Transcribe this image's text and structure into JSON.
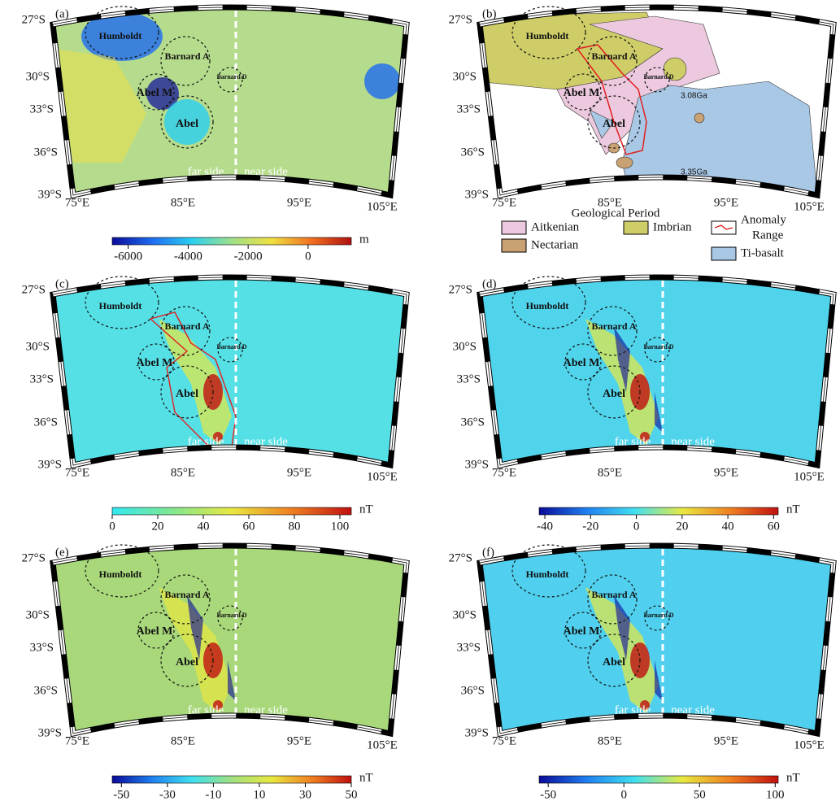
{
  "panels": [
    {
      "label": "(a)",
      "background": "#b5dc8c",
      "lat_labels": [
        "27°S",
        "30°S",
        "33°S",
        "36°S",
        "39°S"
      ],
      "lon_labels": [
        "75°E",
        "85°E",
        "95°E",
        "105°E"
      ],
      "craters": [
        "Humboldt",
        "Barnard A",
        "Barnard D",
        "Abel M",
        "Abel"
      ],
      "side_labels": [
        "far side",
        "near side"
      ],
      "colorbar": {
        "unit": "m",
        "lim": [
          -6533,
          1440
        ],
        "ticks": [
          -6000,
          -4000,
          -2000,
          0
        ],
        "colormap": [
          "#0a0a9a",
          "#1e6cf0",
          "#2ad0f0",
          "#9fe08a",
          "#f0e040",
          "#f07020",
          "#b01010"
        ]
      }
    },
    {
      "label": "(b)",
      "background": "#ffffff",
      "lat_labels": [
        "27°S",
        "30°S",
        "33°S",
        "36°S",
        "39°S"
      ],
      "lon_labels": [
        "75°E",
        "85°E",
        "95°E",
        "105°E"
      ],
      "craters": [
        "Humboldt",
        "Barnard A",
        "Barnard D",
        "Abel M",
        "Abel"
      ],
      "age_labels": [
        "3.08Ga",
        "3.35Ga"
      ],
      "legend": {
        "title": "Geological Period",
        "items": [
          {
            "name": [
              "Aitkenian"
            ],
            "color": "#ecc9de"
          },
          {
            "name": [
              "Imbrian"
            ],
            "color": "#cfcd68"
          },
          {
            "name": [
              "Anomaly",
              "Range"
            ],
            "color": "#e02020"
          },
          {
            "name": [
              "Nectarian"
            ],
            "color": "#c9a172"
          },
          {
            "name": [
              "Ti-basalt"
            ],
            "color": "#a9c8e6"
          }
        ]
      }
    },
    {
      "label": "(c)",
      "background": "#55e0e6",
      "lat_labels": [
        "27°S",
        "30°S",
        "33°S",
        "36°S",
        "39°S"
      ],
      "lon_labels": [
        "75°E",
        "85°E",
        "95°E",
        "105°E"
      ],
      "craters": [
        "Humboldt",
        "Barnard A",
        "Barnard D",
        "Abel M",
        "Abel"
      ],
      "side_labels": [
        "far side",
        "near side"
      ],
      "colorbar": {
        "unit": "nT",
        "lim": [
          0,
          105
        ],
        "ticks": [
          0,
          20,
          40,
          60,
          80,
          100
        ],
        "colormap": [
          "#30e8f0",
          "#80e890",
          "#e8e840",
          "#f08020",
          "#c01010"
        ]
      }
    },
    {
      "label": "(d)",
      "background": "#50d4ec",
      "lat_labels": [
        "27°S",
        "30°S",
        "33°S",
        "36°S",
        "39°S"
      ],
      "lon_labels": [
        "75°E",
        "85°E",
        "95°E",
        "105°E"
      ],
      "craters": [
        "Humboldt",
        "Barnard A",
        "Barnard D",
        "Abel M",
        "Abel"
      ],
      "side_labels": [
        "far side",
        "near side"
      ],
      "colorbar": {
        "unit": "nT",
        "lim": [
          -42.5,
          62
        ],
        "ticks": [
          -40,
          -20,
          0,
          20,
          40,
          60
        ],
        "colormap": [
          "#0a0a9a",
          "#2080f0",
          "#40e0f0",
          "#e8e840",
          "#f08020",
          "#c01010"
        ]
      }
    },
    {
      "label": "(e)",
      "background": "#a8d87a",
      "lat_labels": [
        "27°S",
        "30°S",
        "33°S",
        "36°S",
        "39°S"
      ],
      "lon_labels": [
        "75°E",
        "85°E",
        "95°E",
        "105°E"
      ],
      "craters": [
        "Humboldt",
        "Barnard A",
        "Barnard D",
        "Abel M",
        "Abel"
      ],
      "side_labels": [
        "far side",
        "near side"
      ],
      "colorbar": {
        "unit": "nT",
        "lim": [
          -54,
          50
        ],
        "ticks": [
          -50,
          -30,
          -10,
          10,
          30,
          50
        ],
        "colormap": [
          "#0a0a9a",
          "#2080f0",
          "#40e0f0",
          "#a0e080",
          "#e8e840",
          "#f08020",
          "#c01010"
        ]
      }
    },
    {
      "label": "(f)",
      "background": "#50d0ee",
      "lat_labels": [
        "27°S",
        "30°S",
        "33°S",
        "36°S",
        "39°S"
      ],
      "lon_labels": [
        "75°E",
        "85°E",
        "95°E",
        "105°E"
      ],
      "craters": [
        "Humboldt",
        "Barnard A",
        "Barnard D",
        "Abel M",
        "Abel"
      ],
      "side_labels": [
        "far side",
        "near side"
      ],
      "colorbar": {
        "unit": "nT",
        "lim": [
          -56,
          102
        ],
        "ticks": [
          -50,
          0,
          50,
          100
        ],
        "colormap": [
          "#0a0a9a",
          "#2080f0",
          "#40e0f0",
          "#e8e840",
          "#f08020",
          "#c01010"
        ]
      }
    }
  ]
}
